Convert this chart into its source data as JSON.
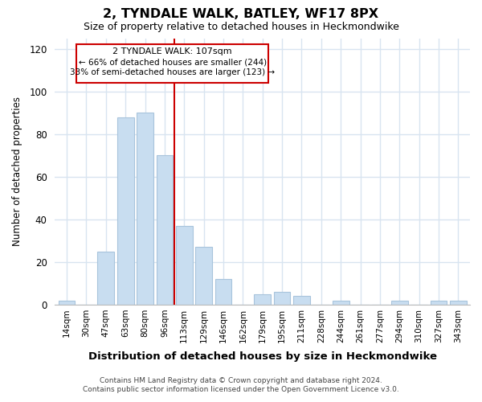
{
  "title": "2, TYNDALE WALK, BATLEY, WF17 8PX",
  "subtitle": "Size of property relative to detached houses in Heckmondwike",
  "xlabel": "Distribution of detached houses by size in Heckmondwike",
  "ylabel": "Number of detached properties",
  "bar_color": "#c8ddf0",
  "bar_edge_color": "#a8c4dc",
  "highlight_edge_color": "#cc0000",
  "categories": [
    "14sqm",
    "30sqm",
    "47sqm",
    "63sqm",
    "80sqm",
    "96sqm",
    "113sqm",
    "129sqm",
    "146sqm",
    "162sqm",
    "179sqm",
    "195sqm",
    "211sqm",
    "228sqm",
    "244sqm",
    "261sqm",
    "277sqm",
    "294sqm",
    "310sqm",
    "327sqm",
    "343sqm"
  ],
  "values": [
    2,
    0,
    25,
    88,
    90,
    70,
    37,
    27,
    12,
    0,
    5,
    6,
    4,
    0,
    2,
    0,
    0,
    2,
    0,
    2,
    2
  ],
  "highlight_bar_index": 6,
  "ylim": [
    0,
    125
  ],
  "yticks": [
    0,
    20,
    40,
    60,
    80,
    100,
    120
  ],
  "annotation_title": "2 TYNDALE WALK: 107sqm",
  "annotation_line1": "← 66% of detached houses are smaller (244)",
  "annotation_line2": "33% of semi-detached houses are larger (123) →",
  "footer_line1": "Contains HM Land Registry data © Crown copyright and database right 2024.",
  "footer_line2": "Contains public sector information licensed under the Open Government Licence v3.0.",
  "background_color": "#ffffff",
  "grid_color": "#d8e4f0",
  "figsize": [
    6.0,
    5.0
  ],
  "dpi": 100
}
